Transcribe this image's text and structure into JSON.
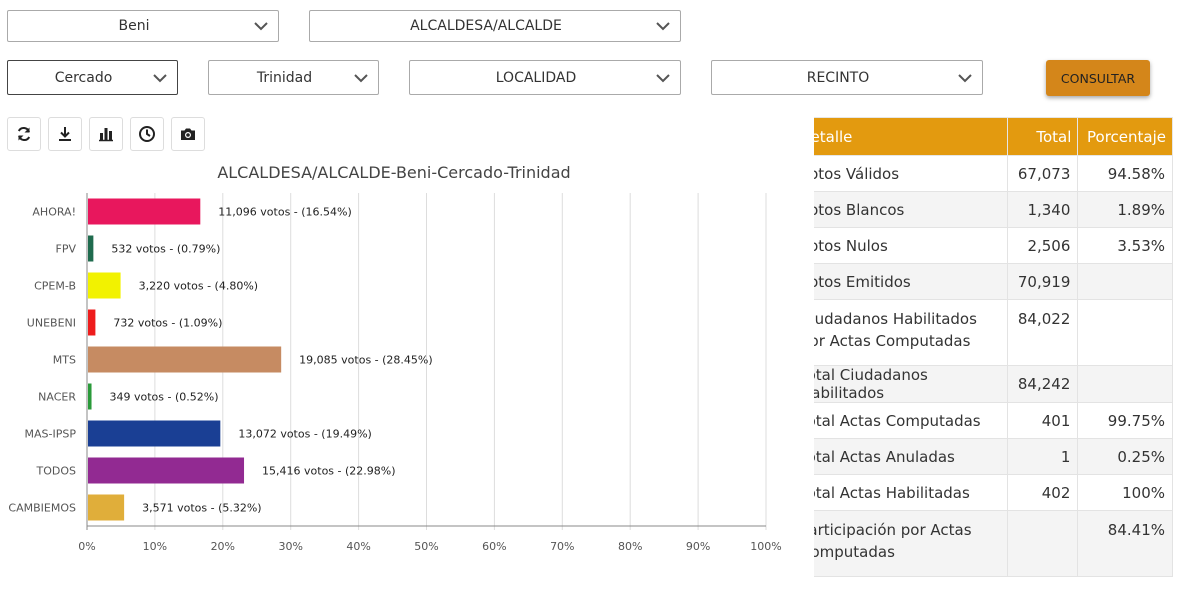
{
  "filters": {
    "departamento": "Beni",
    "cargo": "ALCALDESA/ALCALDE",
    "provincia": "Cercado",
    "municipio": "Trinidad",
    "localidad": "LOCALIDAD",
    "recinto": "RECINTO",
    "consultar_label": "CONSULTAR"
  },
  "toolbar": {
    "icons": [
      "refresh-icon",
      "download-icon",
      "bar-chart-icon",
      "clock-icon",
      "camera-icon"
    ]
  },
  "chart_data": {
    "type": "bar",
    "orientation": "horizontal",
    "title": "ALCALDESA/ALCALDE-Beni-Cercado-Trinidad",
    "categories": [
      "AHORA!",
      "FPV",
      "CPEM-B",
      "UNEBENI",
      "MTS",
      "NACER",
      "MAS-IPSP",
      "TODOS",
      "CAMBIEMOS"
    ],
    "values": [
      16.54,
      0.79,
      4.8,
      1.09,
      28.45,
      0.52,
      19.49,
      22.98,
      5.32
    ],
    "labels": [
      "11,096 votos - (16.54%)",
      "532 votos - (0.79%)",
      "3,220 votos - (4.80%)",
      "732 votos - (1.09%)",
      "19,085 votos - (28.45%)",
      "349 votos - (0.52%)",
      "13,072 votos - (19.49%)",
      "15,416 votos - (22.98%)",
      "3,571 votos - (5.32%)"
    ],
    "colors": [
      "#e8175d",
      "#1f6b4e",
      "#f2f200",
      "#ee1c1c",
      "#c68b62",
      "#2a9a3a",
      "#1a3f94",
      "#922a92",
      "#e0ae3a"
    ],
    "xlim": [
      0,
      100
    ],
    "xticks": [
      "0%",
      "10%",
      "20%",
      "30%",
      "40%",
      "50%",
      "60%",
      "70%",
      "80%",
      "90%",
      "100%"
    ],
    "grid": true
  },
  "table": {
    "headers": [
      "Detalle",
      "Total",
      "Porcentaje"
    ],
    "rows": [
      {
        "detalle": "Votos Válidos",
        "total": "67,073",
        "porcentaje": "94.58%"
      },
      {
        "detalle": "Votos Blancos",
        "total": "1,340",
        "porcentaje": "1.89%"
      },
      {
        "detalle": "Votos Nulos",
        "total": "2,506",
        "porcentaje": "3.53%"
      },
      {
        "detalle": "Votos Emitidos",
        "total": "70,919",
        "porcentaje": ""
      },
      {
        "detalle": "Ciudadanos Habilitados por Actas Computadas",
        "total": "84,022",
        "porcentaje": ""
      },
      {
        "detalle": "Total Ciudadanos Habilitados",
        "total": "84,242",
        "porcentaje": ""
      },
      {
        "detalle": "Total Actas Computadas",
        "total": "401",
        "porcentaje": "99.75%"
      },
      {
        "detalle": "Total Actas Anuladas",
        "total": "1",
        "porcentaje": "0.25%"
      },
      {
        "detalle": "Total Actas Habilitadas",
        "total": "402",
        "porcentaje": "100%"
      },
      {
        "detalle": "Participación por Actas Computadas",
        "total": "",
        "porcentaje": "84.41%"
      }
    ]
  }
}
